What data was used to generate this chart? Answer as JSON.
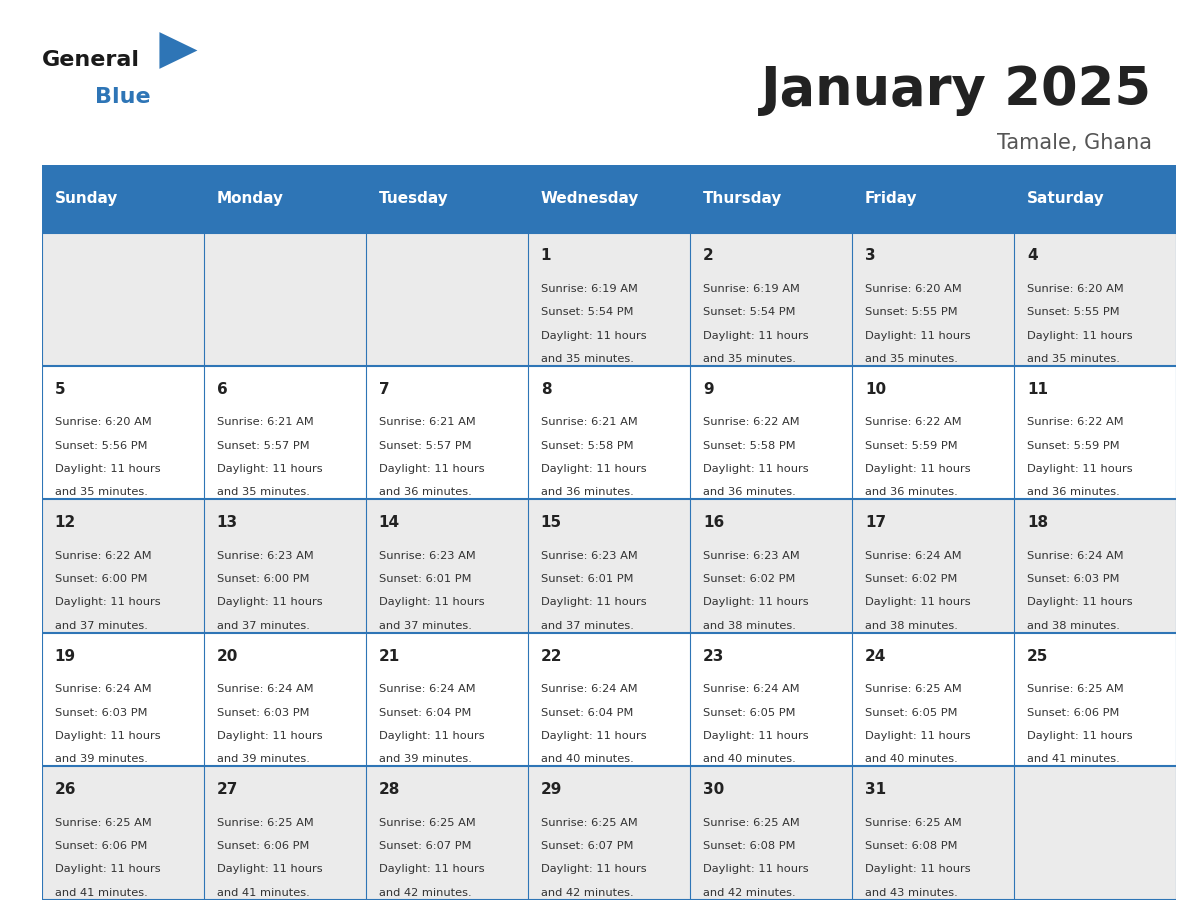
{
  "title": "January 2025",
  "subtitle": "Tamale, Ghana",
  "days_of_week": [
    "Sunday",
    "Monday",
    "Tuesday",
    "Wednesday",
    "Thursday",
    "Friday",
    "Saturday"
  ],
  "header_bg": "#2E75B6",
  "header_text_color": "#FFFFFF",
  "row_bg_odd": "#EBEBEB",
  "row_bg_even": "#FFFFFF",
  "cell_text_color": "#333333",
  "day_num_color": "#222222",
  "border_color": "#2E75B6",
  "title_color": "#222222",
  "subtitle_color": "#555555",
  "calendar": [
    [
      {
        "day": null,
        "sunrise": null,
        "sunset": null,
        "daylight_line1": null,
        "daylight_line2": null
      },
      {
        "day": null,
        "sunrise": null,
        "sunset": null,
        "daylight_line1": null,
        "daylight_line2": null
      },
      {
        "day": null,
        "sunrise": null,
        "sunset": null,
        "daylight_line1": null,
        "daylight_line2": null
      },
      {
        "day": 1,
        "sunrise": "6:19 AM",
        "sunset": "5:54 PM",
        "daylight_line1": "11 hours",
        "daylight_line2": "and 35 minutes."
      },
      {
        "day": 2,
        "sunrise": "6:19 AM",
        "sunset": "5:54 PM",
        "daylight_line1": "11 hours",
        "daylight_line2": "and 35 minutes."
      },
      {
        "day": 3,
        "sunrise": "6:20 AM",
        "sunset": "5:55 PM",
        "daylight_line1": "11 hours",
        "daylight_line2": "and 35 minutes."
      },
      {
        "day": 4,
        "sunrise": "6:20 AM",
        "sunset": "5:55 PM",
        "daylight_line1": "11 hours",
        "daylight_line2": "and 35 minutes."
      }
    ],
    [
      {
        "day": 5,
        "sunrise": "6:20 AM",
        "sunset": "5:56 PM",
        "daylight_line1": "11 hours",
        "daylight_line2": "and 35 minutes."
      },
      {
        "day": 6,
        "sunrise": "6:21 AM",
        "sunset": "5:57 PM",
        "daylight_line1": "11 hours",
        "daylight_line2": "and 35 minutes."
      },
      {
        "day": 7,
        "sunrise": "6:21 AM",
        "sunset": "5:57 PM",
        "daylight_line1": "11 hours",
        "daylight_line2": "and 36 minutes."
      },
      {
        "day": 8,
        "sunrise": "6:21 AM",
        "sunset": "5:58 PM",
        "daylight_line1": "11 hours",
        "daylight_line2": "and 36 minutes."
      },
      {
        "day": 9,
        "sunrise": "6:22 AM",
        "sunset": "5:58 PM",
        "daylight_line1": "11 hours",
        "daylight_line2": "and 36 minutes."
      },
      {
        "day": 10,
        "sunrise": "6:22 AM",
        "sunset": "5:59 PM",
        "daylight_line1": "11 hours",
        "daylight_line2": "and 36 minutes."
      },
      {
        "day": 11,
        "sunrise": "6:22 AM",
        "sunset": "5:59 PM",
        "daylight_line1": "11 hours",
        "daylight_line2": "and 36 minutes."
      }
    ],
    [
      {
        "day": 12,
        "sunrise": "6:22 AM",
        "sunset": "6:00 PM",
        "daylight_line1": "11 hours",
        "daylight_line2": "and 37 minutes."
      },
      {
        "day": 13,
        "sunrise": "6:23 AM",
        "sunset": "6:00 PM",
        "daylight_line1": "11 hours",
        "daylight_line2": "and 37 minutes."
      },
      {
        "day": 14,
        "sunrise": "6:23 AM",
        "sunset": "6:01 PM",
        "daylight_line1": "11 hours",
        "daylight_line2": "and 37 minutes."
      },
      {
        "day": 15,
        "sunrise": "6:23 AM",
        "sunset": "6:01 PM",
        "daylight_line1": "11 hours",
        "daylight_line2": "and 37 minutes."
      },
      {
        "day": 16,
        "sunrise": "6:23 AM",
        "sunset": "6:02 PM",
        "daylight_line1": "11 hours",
        "daylight_line2": "and 38 minutes."
      },
      {
        "day": 17,
        "sunrise": "6:24 AM",
        "sunset": "6:02 PM",
        "daylight_line1": "11 hours",
        "daylight_line2": "and 38 minutes."
      },
      {
        "day": 18,
        "sunrise": "6:24 AM",
        "sunset": "6:03 PM",
        "daylight_line1": "11 hours",
        "daylight_line2": "and 38 minutes."
      }
    ],
    [
      {
        "day": 19,
        "sunrise": "6:24 AM",
        "sunset": "6:03 PM",
        "daylight_line1": "11 hours",
        "daylight_line2": "and 39 minutes."
      },
      {
        "day": 20,
        "sunrise": "6:24 AM",
        "sunset": "6:03 PM",
        "daylight_line1": "11 hours",
        "daylight_line2": "and 39 minutes."
      },
      {
        "day": 21,
        "sunrise": "6:24 AM",
        "sunset": "6:04 PM",
        "daylight_line1": "11 hours",
        "daylight_line2": "and 39 minutes."
      },
      {
        "day": 22,
        "sunrise": "6:24 AM",
        "sunset": "6:04 PM",
        "daylight_line1": "11 hours",
        "daylight_line2": "and 40 minutes."
      },
      {
        "day": 23,
        "sunrise": "6:24 AM",
        "sunset": "6:05 PM",
        "daylight_line1": "11 hours",
        "daylight_line2": "and 40 minutes."
      },
      {
        "day": 24,
        "sunrise": "6:25 AM",
        "sunset": "6:05 PM",
        "daylight_line1": "11 hours",
        "daylight_line2": "and 40 minutes."
      },
      {
        "day": 25,
        "sunrise": "6:25 AM",
        "sunset": "6:06 PM",
        "daylight_line1": "11 hours",
        "daylight_line2": "and 41 minutes."
      }
    ],
    [
      {
        "day": 26,
        "sunrise": "6:25 AM",
        "sunset": "6:06 PM",
        "daylight_line1": "11 hours",
        "daylight_line2": "and 41 minutes."
      },
      {
        "day": 27,
        "sunrise": "6:25 AM",
        "sunset": "6:06 PM",
        "daylight_line1": "11 hours",
        "daylight_line2": "and 41 minutes."
      },
      {
        "day": 28,
        "sunrise": "6:25 AM",
        "sunset": "6:07 PM",
        "daylight_line1": "11 hours",
        "daylight_line2": "and 42 minutes."
      },
      {
        "day": 29,
        "sunrise": "6:25 AM",
        "sunset": "6:07 PM",
        "daylight_line1": "11 hours",
        "daylight_line2": "and 42 minutes."
      },
      {
        "day": 30,
        "sunrise": "6:25 AM",
        "sunset": "6:08 PM",
        "daylight_line1": "11 hours",
        "daylight_line2": "and 42 minutes."
      },
      {
        "day": 31,
        "sunrise": "6:25 AM",
        "sunset": "6:08 PM",
        "daylight_line1": "11 hours",
        "daylight_line2": "and 43 minutes."
      },
      {
        "day": null,
        "sunrise": null,
        "sunset": null,
        "daylight_line1": null,
        "daylight_line2": null
      }
    ]
  ],
  "logo_text_general": "General",
  "logo_text_blue": "Blue",
  "logo_color_general": "#1a1a1a",
  "logo_color_blue": "#2E75B6",
  "figwidth": 11.88,
  "figheight": 9.18,
  "dpi": 100
}
